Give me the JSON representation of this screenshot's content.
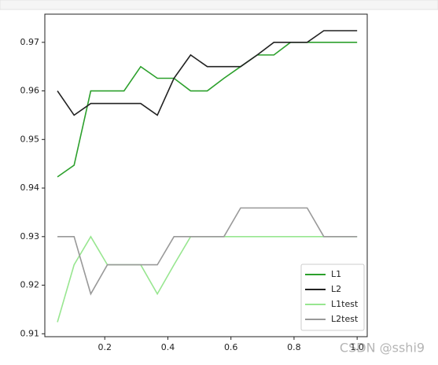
{
  "chart_data": {
    "type": "line",
    "x": [
      0.05,
      0.1028,
      0.1556,
      0.2083,
      0.2611,
      0.3139,
      0.3667,
      0.4194,
      0.4722,
      0.525,
      0.5778,
      0.6306,
      0.6833,
      0.7361,
      0.7889,
      0.8417,
      0.8944,
      0.9472,
      1.0
    ],
    "series": [
      {
        "name": "L1",
        "color": "#2ca02c",
        "values": [
          0.9423,
          0.9447,
          0.96,
          0.96,
          0.96,
          0.965,
          0.9626,
          0.9626,
          0.96,
          0.96,
          0.9626,
          0.965,
          0.9674,
          0.9674,
          0.97,
          0.97,
          0.97,
          0.97,
          0.97
        ]
      },
      {
        "name": "L2",
        "color": "#222222",
        "values": [
          0.96,
          0.955,
          0.9574,
          0.9574,
          0.9574,
          0.9574,
          0.955,
          0.9626,
          0.9674,
          0.965,
          0.965,
          0.965,
          0.9674,
          0.97,
          0.97,
          0.97,
          0.9724,
          0.9724,
          0.9724
        ]
      },
      {
        "name": "L1test",
        "color": "#98e690",
        "values": [
          0.9124,
          0.9242,
          0.93,
          0.9242,
          0.9242,
          0.9242,
          0.9182,
          0.9242,
          0.93,
          0.93,
          0.93,
          0.93,
          0.93,
          0.93,
          0.93,
          0.93,
          0.93,
          0.93,
          0.93
        ]
      },
      {
        "name": "L2test",
        "color": "#999999",
        "values": [
          0.93,
          0.93,
          0.9182,
          0.9242,
          0.9242,
          0.9242,
          0.9242,
          0.93,
          0.93,
          0.93,
          0.93,
          0.9359,
          0.9359,
          0.9359,
          0.9359,
          0.9359,
          0.93,
          0.93,
          0.93
        ]
      }
    ],
    "xlim": [
      0.01,
      1.032
    ],
    "ylim": [
      0.9094,
      0.9758
    ],
    "xticks": [
      0.2,
      0.4,
      0.6,
      0.8,
      {
        "value": 1,
        "label": "1.0"
      }
    ],
    "yticks": [
      0.91,
      0.92,
      0.93,
      0.94,
      0.95,
      0.96,
      0.97
    ],
    "legend": "lower right",
    "watermark": "CSDN @sshi9"
  }
}
